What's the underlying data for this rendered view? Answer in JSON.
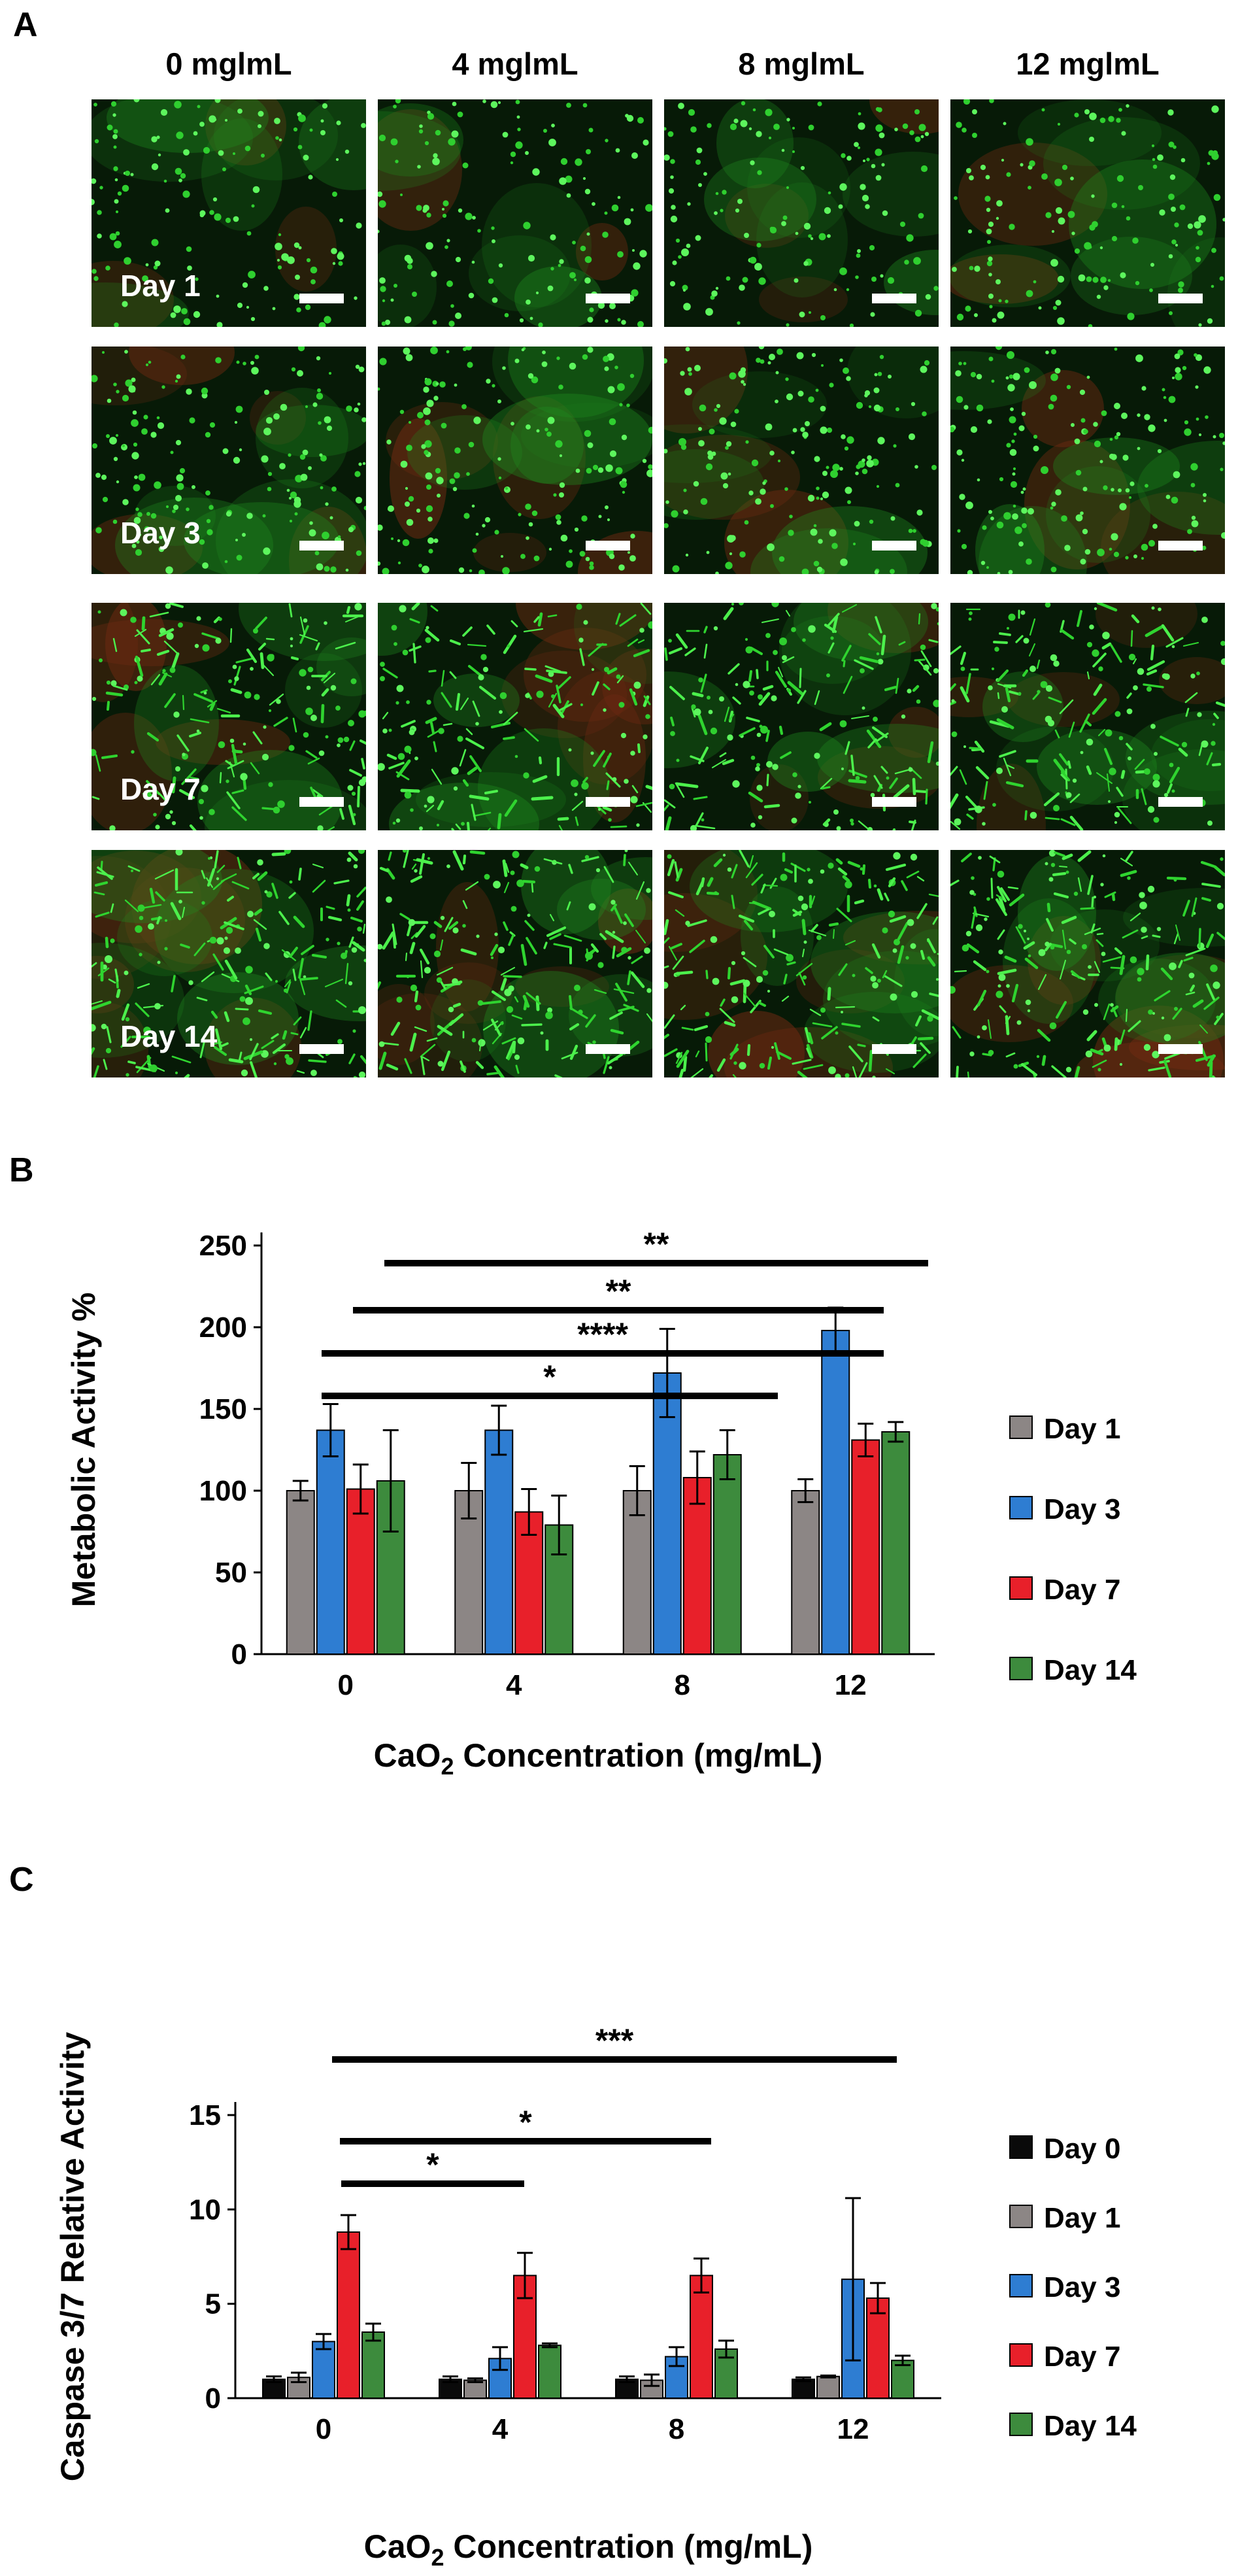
{
  "panel_a": {
    "letter": "A",
    "columns": [
      "0 mglmL",
      "4 mglmL",
      "8 mglmL",
      "12 mglmL"
    ],
    "rows": [
      "Day 1",
      "Day 3",
      "Day 7",
      "Day 14"
    ]
  },
  "chart_data": [
    {
      "panel": "B",
      "type": "bar",
      "categories": [
        "0",
        "4",
        "8",
        "12"
      ],
      "xlabel": "CaO2 Concentration (mg/mL)",
      "ylabel": "Metabolic Activity %",
      "ylim": [
        0,
        250
      ],
      "yticks": [
        0,
        50,
        100,
        150,
        200,
        250
      ],
      "grid": false,
      "legend_position": "right",
      "series": [
        {
          "name": "Day 1",
          "color": "#8c8685",
          "values": [
            100,
            100,
            100,
            100
          ],
          "errors": [
            6,
            17,
            15,
            7
          ]
        },
        {
          "name": "Day 3",
          "color": "#2e7dd2",
          "values": [
            137,
            137,
            172,
            198
          ],
          "errors": [
            16,
            15,
            27,
            14
          ]
        },
        {
          "name": "Day 7",
          "color": "#e8202a",
          "values": [
            101,
            87,
            108,
            131
          ],
          "errors": [
            15,
            14,
            16,
            10
          ]
        },
        {
          "name": "Day 14",
          "color": "#3d8b3d",
          "values": [
            106,
            79,
            122,
            136
          ],
          "errors": [
            31,
            18,
            15,
            6
          ]
        }
      ],
      "significance": [
        {
          "from": "0",
          "to": "8",
          "label": "*"
        },
        {
          "from": "0",
          "to": "12",
          "label": "****"
        },
        {
          "from": "0",
          "to": "12",
          "label": "**"
        },
        {
          "from": "0",
          "to": "12",
          "label": "**"
        }
      ]
    },
    {
      "panel": "C",
      "type": "bar",
      "categories": [
        "0",
        "4",
        "8",
        "12"
      ],
      "xlabel": "CaO2 Concentration (mg/mL)",
      "ylabel": "Caspase 3/7 Relative Activity",
      "ylim": [
        0,
        15
      ],
      "yticks": [
        0,
        5,
        10,
        15
      ],
      "grid": false,
      "legend_position": "right",
      "series": [
        {
          "name": "Day 0",
          "color": "#0a0a0a",
          "values": [
            1.0,
            1.0,
            1.0,
            1.0
          ],
          "errors": [
            0.15,
            0.15,
            0.15,
            0.1
          ]
        },
        {
          "name": "Day 1",
          "color": "#8c8685",
          "values": [
            1.1,
            0.95,
            0.95,
            1.15
          ],
          "errors": [
            0.25,
            0.1,
            0.3,
            0.05
          ]
        },
        {
          "name": "Day 3",
          "color": "#2e7dd2",
          "values": [
            3.0,
            2.1,
            2.2,
            6.3
          ],
          "errors": [
            0.4,
            0.6,
            0.5,
            4.3
          ]
        },
        {
          "name": "Day 7",
          "color": "#e8202a",
          "values": [
            8.8,
            6.5,
            6.5,
            5.3
          ],
          "errors": [
            0.9,
            1.2,
            0.9,
            0.8
          ]
        },
        {
          "name": "Day 14",
          "color": "#3d8b3d",
          "values": [
            3.5,
            2.8,
            2.6,
            2.0
          ],
          "errors": [
            0.45,
            0.1,
            0.45,
            0.25
          ]
        }
      ],
      "significance": [
        {
          "from": "0",
          "to": "4",
          "label": "*"
        },
        {
          "from": "0",
          "to": "8",
          "label": "*"
        },
        {
          "from": "0",
          "to": "12",
          "label": "***"
        }
      ]
    }
  ]
}
